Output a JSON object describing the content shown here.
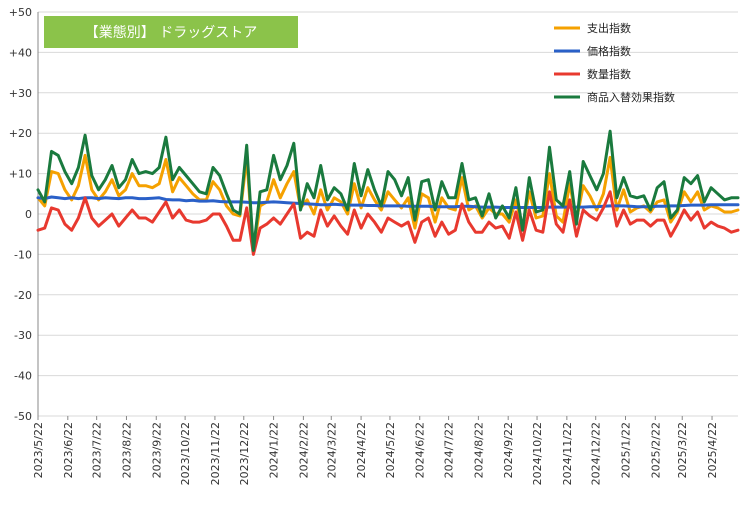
{
  "chart_data": {
    "type": "line",
    "title": "【業態別】 ドラッグストア",
    "title_bg": "#8BC34A",
    "xlabel": "",
    "ylabel": "",
    "ylim": [
      -50,
      50
    ],
    "yticks": [
      -50,
      -40,
      -30,
      -20,
      -10,
      0,
      10,
      20,
      30,
      40,
      50
    ],
    "ytick_labels": [
      "-50",
      "-40",
      "-30",
      "-20",
      "-10",
      "0",
      "+10",
      "+20",
      "+30",
      "+40",
      "+50"
    ],
    "x_start": "2023-05-22",
    "x_interval_days": 7,
    "x_tick_labels": [
      "2023/5/22",
      "2023/6/22",
      "2023/7/22",
      "2023/8/22",
      "2023/9/22",
      "2023/10/22",
      "2023/11/22",
      "2023/12/22",
      "2024/1/22",
      "2024/2/22",
      "2024/3/22",
      "2024/4/22",
      "2024/5/22",
      "2024/6/22",
      "2024/7/22",
      "2024/8/22",
      "2024/9/22",
      "2024/10/22",
      "2024/11/22",
      "2024/12/22",
      "2025/1/22",
      "2025/2/22",
      "2025/3/22",
      "2025/4/22"
    ],
    "grid": "horizontal",
    "legend_position": "top-right",
    "series": [
      {
        "name": "支出指数",
        "color": "#F5A100",
        "values": [
          4,
          2,
          10.5,
          10,
          6,
          3.5,
          7,
          14.5,
          6,
          3.5,
          5.5,
          8.5,
          4.5,
          6,
          10,
          7,
          7,
          6.5,
          7.5,
          13.5,
          5.5,
          9,
          7,
          5,
          3.5,
          3.5,
          8,
          6,
          2,
          0,
          -0.5,
          14,
          -9,
          2,
          3,
          8.5,
          4,
          7.5,
          10.5,
          1.5,
          3.5,
          0,
          6,
          1,
          4,
          3,
          0,
          7.5,
          1.5,
          6.5,
          3.5,
          1,
          5.5,
          3.5,
          1.5,
          4,
          -3.5,
          5,
          4,
          -2,
          4,
          1.5,
          1,
          9,
          1,
          2,
          -1,
          1.5,
          0,
          0,
          -2,
          3.5,
          -3.5,
          5.5,
          -1,
          -0.5,
          10,
          -0.5,
          -2,
          7.5,
          -1.5,
          7,
          4.5,
          1,
          5,
          14,
          1,
          6,
          0.5,
          1.5,
          2,
          0.5,
          3,
          3.5,
          -2,
          0.5,
          5.5,
          3,
          5.5,
          1,
          2,
          1.5,
          0.5,
          0.5,
          1
        ]
      },
      {
        "name": "価格指数",
        "color": "#2A60C8",
        "values": [
          4,
          3.8,
          4.2,
          4,
          3.8,
          4,
          3.8,
          4,
          4,
          3.8,
          4,
          3.9,
          3.8,
          4,
          4,
          3.8,
          3.8,
          3.9,
          4,
          3.6,
          3.5,
          3.5,
          3.3,
          3.4,
          3.2,
          3.2,
          3.3,
          3.1,
          3.0,
          3.0,
          3.0,
          2.9,
          2.8,
          2.8,
          2.9,
          3.0,
          2.9,
          2.8,
          2.7,
          2.6,
          2.5,
          2.4,
          2.3,
          2.3,
          2.4,
          2.3,
          2.2,
          2.2,
          2.2,
          2.1,
          2.1,
          2.0,
          2.0,
          2.0,
          2.0,
          1.9,
          1.9,
          1.9,
          1.9,
          1.8,
          1.8,
          1.8,
          1.8,
          1.9,
          1.9,
          1.8,
          1.7,
          1.7,
          1.7,
          1.6,
          1.6,
          1.6,
          1.6,
          1.6,
          1.6,
          1.6,
          1.7,
          1.7,
          1.7,
          1.7,
          1.7,
          1.7,
          1.8,
          1.8,
          1.9,
          2.0,
          2.0,
          2.0,
          1.9,
          1.8,
          1.8,
          1.8,
          1.9,
          1.9,
          2.0,
          2.0,
          2.1,
          2.2,
          2.2,
          2.2,
          2.3,
          2.3,
          2.3,
          2.3,
          2.3
        ]
      },
      {
        "name": "数量指数",
        "color": "#E8392F",
        "values": [
          -4,
          -3.5,
          1.5,
          1,
          -2.5,
          -4,
          -1,
          4,
          -1,
          -3,
          -1.5,
          0,
          -3,
          -1,
          1,
          -1,
          -1,
          -2,
          0.5,
          3,
          -1,
          1,
          -1.5,
          -2,
          -2,
          -1.5,
          0,
          0,
          -3,
          -6.5,
          -6.5,
          1.5,
          -10,
          -3.5,
          -2.5,
          -1,
          -2.5,
          0,
          2.5,
          -6,
          -4.5,
          -5.5,
          1,
          -3,
          -0.5,
          -3,
          -5,
          1,
          -3.5,
          0,
          -2,
          -4.5,
          -1,
          -2,
          -3,
          -2,
          -7,
          -2,
          -1,
          -5.5,
          -2,
          -5,
          -4,
          2.5,
          -2,
          -4.5,
          -4.5,
          -2,
          -3.5,
          -3,
          -6,
          0.5,
          -6.5,
          1,
          -4,
          -4.5,
          5.5,
          -2.5,
          -4.5,
          3.5,
          -5.5,
          1,
          -0.5,
          -1.5,
          1.5,
          5.5,
          -3,
          1,
          -2.5,
          -1.5,
          -1.5,
          -3,
          -1.5,
          -1.5,
          -5.5,
          -2.5,
          1,
          -1.5,
          0.5,
          -3.5,
          -2,
          -3,
          -3.5,
          -4.5,
          -4
        ]
      },
      {
        "name": "商品入替効果指数",
        "color": "#1A7A3E",
        "values": [
          6,
          3,
          15.5,
          14.5,
          10.5,
          7.5,
          11.5,
          19.5,
          9.5,
          6,
          8.5,
          12,
          6.5,
          8.5,
          13.5,
          10,
          10.5,
          10,
          11.5,
          19,
          8.5,
          11.5,
          9.5,
          7.5,
          5.5,
          5,
          11.5,
          9.5,
          5,
          1,
          0,
          17,
          -9,
          5.5,
          6,
          14.5,
          8.5,
          12,
          17.5,
          1,
          7.5,
          4,
          12,
          3.5,
          6.5,
          5,
          1,
          12.5,
          4.5,
          11,
          6,
          2,
          10.5,
          8.5,
          4.5,
          9,
          -1.5,
          8,
          8.5,
          1,
          8,
          4,
          4,
          12.5,
          3.5,
          4,
          -0.5,
          5,
          -1,
          2,
          -1,
          6.5,
          -4,
          9,
          0.5,
          1,
          16.5,
          3.5,
          2,
          10.5,
          -2.5,
          13,
          9.5,
          6,
          10,
          20.5,
          4,
          9,
          4.5,
          4,
          4.5,
          1,
          6.5,
          8,
          -1,
          1,
          9,
          7.5,
          9.5,
          3,
          6.5,
          5,
          3.5,
          4,
          4
        ]
      }
    ]
  }
}
